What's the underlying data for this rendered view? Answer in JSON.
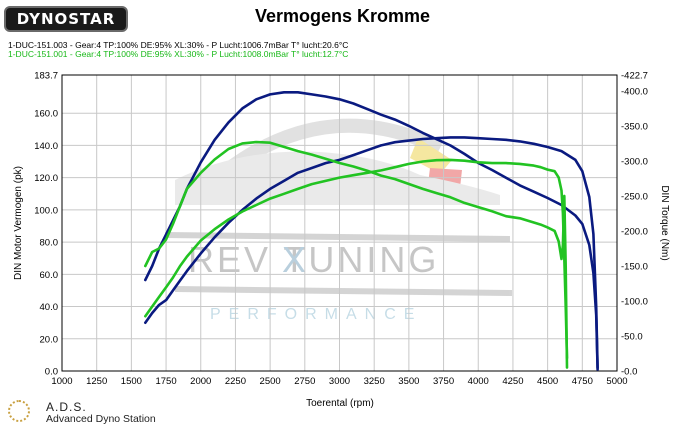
{
  "header": {
    "logo_text": "DYNOSTAR",
    "title": "Vermogens Kromme",
    "runs": [
      "1-DUC-151.003 - Gear:4 TP:100% DE:95% XL:30%   - P Lucht:1006.7mBar T° lucht:20.6°C",
      "1-DUC-151.001 - Gear:4 TP:100% DE:95% XL:30%   - P Lucht:1008.0mBar T° lucht:12.7°C"
    ]
  },
  "watermark": {
    "brand": "REV TUNING",
    "x_mark": "X",
    "tagline": "PERFORMANCE"
  },
  "footer": {
    "name": "A.D.S.",
    "subtitle": "Advanced Dyno Station"
  },
  "colors": {
    "run1": "#0a1a80",
    "run2": "#22c322",
    "grid": "#c8c8c8"
  },
  "chart_data": {
    "type": "line",
    "title": "Vermogens Kromme",
    "xlabel": "Toerental (rpm)",
    "ylabel": "DIN Motor Vermogen (pk)",
    "y2label": "DIN Torque (Nm)",
    "xlim": [
      1000,
      5000
    ],
    "ylim": [
      0,
      183.7
    ],
    "y2lim": [
      0,
      422.7
    ],
    "x_ticks": [
      "1000",
      "1250",
      "1500",
      "1750",
      "2000",
      "2250",
      "2500",
      "2750",
      "3000",
      "3250",
      "3500",
      "3750",
      "4000",
      "4250",
      "4500",
      "4750",
      "5000"
    ],
    "y_ticks": [
      "183.7",
      "160.0",
      "140.0",
      "120.0",
      "100.0",
      "80.0",
      "60.0",
      "40.0",
      "20.0",
      "0.0"
    ],
    "y2_ticks": [
      "-422.7",
      "-400.0",
      "-350.0",
      "-300.0",
      "-250.0",
      "-200.0",
      "-150.0",
      "-100.0",
      "-50.0",
      "-0.0"
    ],
    "grid": true,
    "series": [
      {
        "name": "1-DUC-151.003 vermogen",
        "axis": "left",
        "color": "#0a1a80",
        "x": [
          1600,
          1650,
          1700,
          1750,
          1800,
          1850,
          1900,
          2000,
          2100,
          2200,
          2300,
          2400,
          2500,
          2600,
          2700,
          2800,
          2900,
          3000,
          3100,
          3200,
          3300,
          3400,
          3500,
          3600,
          3700,
          3800,
          3900,
          4000,
          4100,
          4200,
          4300,
          4400,
          4500,
          4600,
          4700,
          4750,
          4800,
          4830,
          4850,
          4860
        ],
        "y": [
          30,
          36,
          41,
          44,
          50,
          56,
          62,
          73,
          83,
          92,
          100,
          107,
          113,
          118,
          123,
          126,
          129,
          131,
          134,
          137,
          140,
          142,
          143,
          144,
          144.5,
          145,
          145,
          144.5,
          144,
          143.5,
          142.5,
          141,
          139,
          136.5,
          131,
          124,
          108,
          85,
          40,
          2
        ]
      },
      {
        "name": "1-DUC-151.003 koppel",
        "axis": "right",
        "color": "#0a1a80",
        "x": [
          1600,
          1650,
          1700,
          1750,
          1800,
          1850,
          1900,
          2000,
          2100,
          2200,
          2300,
          2400,
          2500,
          2600,
          2700,
          2800,
          2900,
          3000,
          3100,
          3200,
          3300,
          3400,
          3500,
          3600,
          3700,
          3800,
          3900,
          4000,
          4100,
          4200,
          4300,
          4400,
          4500,
          4600,
          4700,
          4750,
          4800,
          4830,
          4850,
          4860
        ],
        "y": [
          130,
          150,
          175,
          195,
          215,
          235,
          260,
          298,
          330,
          355,
          375,
          388,
          395,
          398,
          398,
          395,
          392,
          388,
          382,
          374,
          366,
          359,
          350,
          340,
          331,
          322,
          310,
          297,
          287,
          276,
          265,
          256,
          247,
          237,
          222,
          210,
          180,
          140,
          80,
          2
        ]
      },
      {
        "name": "1-DUC-151.001 vermogen",
        "axis": "left",
        "color": "#22c322",
        "x": [
          1600,
          1650,
          1700,
          1750,
          1800,
          1850,
          1900,
          2000,
          2100,
          2200,
          2300,
          2400,
          2500,
          2600,
          2700,
          2800,
          2900,
          3000,
          3100,
          3200,
          3300,
          3400,
          3500,
          3600,
          3700,
          3800,
          3900,
          4000,
          4100,
          4200,
          4300,
          4400,
          4450,
          4500,
          4550,
          4580,
          4600,
          4610,
          4620,
          4630,
          4640
        ],
        "y": [
          34,
          40,
          46,
          52,
          58,
          65,
          71,
          81,
          88,
          94,
          99,
          103,
          107,
          110,
          113,
          116,
          118,
          120,
          121.5,
          123,
          124.5,
          126.5,
          128.5,
          130,
          130.8,
          131,
          130.5,
          129.5,
          129,
          129,
          128.5,
          127.5,
          126.5,
          125,
          124,
          120,
          112,
          98,
          70,
          40,
          8
        ]
      },
      {
        "name": "1-DUC-151.001 koppel",
        "axis": "right",
        "color": "#22c322",
        "x": [
          1600,
          1650,
          1700,
          1750,
          1800,
          1850,
          1900,
          2000,
          2100,
          2200,
          2300,
          2400,
          2500,
          2600,
          2700,
          2800,
          2900,
          3000,
          3100,
          3200,
          3300,
          3400,
          3500,
          3600,
          3700,
          3800,
          3900,
          4000,
          4100,
          4200,
          4300,
          4400,
          4450,
          4500,
          4550,
          4580,
          4600,
          4610,
          4620,
          4630,
          4640
        ],
        "y": [
          150,
          170,
          175,
          188,
          210,
          235,
          260,
          283,
          302,
          317,
          325,
          327,
          326,
          320,
          314,
          309,
          303,
          297,
          292,
          286,
          279,
          274,
          267,
          260,
          254,
          248,
          240,
          234,
          228,
          221,
          218,
          212,
          209,
          205,
          200,
          185,
          160,
          180,
          250,
          150,
          5
        ]
      }
    ]
  }
}
